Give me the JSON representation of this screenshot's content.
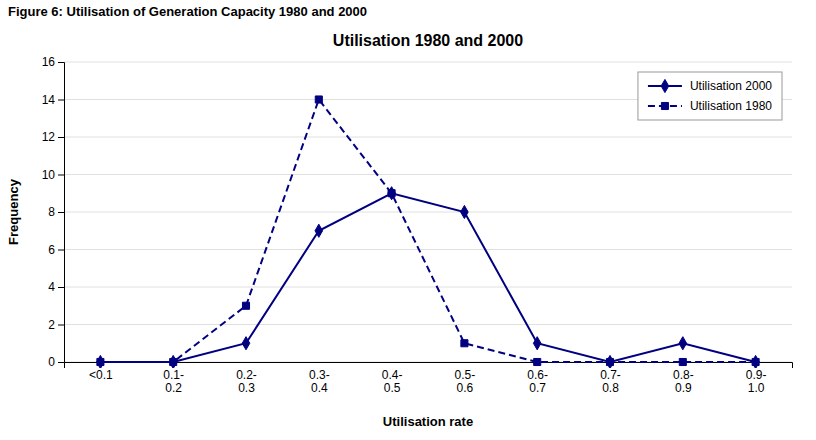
{
  "chart_data": {
    "type": "line",
    "subtitle": "Figure 6:  Utilisation of Generation Capacity 1980 and 2000",
    "title": "Utilisation 1980 and 2000",
    "x_label": "Utilisation rate",
    "y_label": "Frequency",
    "categories": [
      "<0.1",
      "0.1-\n0.2",
      "0.2-\n0.3",
      "0.3-\n0.4",
      "0.4-\n0.5",
      "0.5-\n0.6",
      "0.6-\n0.7",
      "0.7-\n0.8",
      "0.8-\n0.9",
      "0.9-\n1.0"
    ],
    "series": [
      {
        "name": "Utilisation 2000",
        "color": "#000080",
        "line_style": "solid",
        "marker": "diamond",
        "values": [
          0,
          0,
          1,
          7,
          9,
          8,
          1,
          0,
          1,
          0
        ]
      },
      {
        "name": "Utilisation 1980",
        "color": "#000080",
        "line_style": "dashed",
        "marker": "square",
        "values": [
          0,
          0,
          3,
          14,
          9,
          1,
          0,
          0,
          0,
          0
        ]
      }
    ],
    "ylim": [
      0,
      16
    ],
    "yticks": [
      0,
      2,
      4,
      6,
      8,
      10,
      12,
      14,
      16
    ],
    "grid": true,
    "legend": "upper right"
  }
}
